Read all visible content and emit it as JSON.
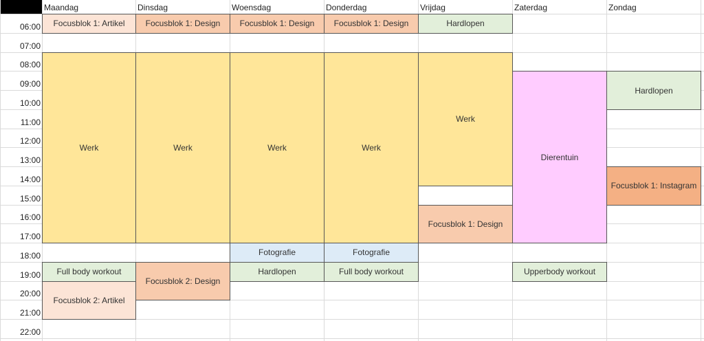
{
  "days": [
    "Maandag",
    "Dinsdag",
    "Woensdag",
    "Donderdag",
    "Vrijdag",
    "Zaterdag",
    "Zondag"
  ],
  "hours": [
    "06:00",
    "07:00",
    "08:00",
    "09:00",
    "10:00",
    "11:00",
    "12:00",
    "13:00",
    "14:00",
    "15:00",
    "16:00",
    "17:00",
    "18:00",
    "19:00",
    "20:00",
    "21:00",
    "22:00"
  ],
  "colors": {
    "focus_light": "#fce4d6",
    "focus": "#f8cbad",
    "focus_dark": "#f4b084",
    "work": "#ffe699",
    "sport": "#e2efda",
    "photo": "#ddebf7",
    "zoo": "#ffccff"
  },
  "events": [
    {
      "day": 0,
      "start": 6,
      "end": 7,
      "label": "Focusblok 1: Artikel",
      "color": "focus_light"
    },
    {
      "day": 0,
      "start": 8,
      "end": 18,
      "label": "Werk",
      "color": "work"
    },
    {
      "day": 0,
      "start": 19,
      "end": 20,
      "label": "Full body workout",
      "color": "sport"
    },
    {
      "day": 0,
      "start": 20,
      "end": 22,
      "label": "Focusblok 2: Artikel",
      "color": "focus_light"
    },
    {
      "day": 1,
      "start": 6,
      "end": 7,
      "label": "Focusblok 1: Design",
      "color": "focus"
    },
    {
      "day": 1,
      "start": 8,
      "end": 18,
      "label": "Werk",
      "color": "work"
    },
    {
      "day": 1,
      "start": 19,
      "end": 21,
      "label": "Focusblok 2: Design",
      "color": "focus"
    },
    {
      "day": 2,
      "start": 6,
      "end": 7,
      "label": "Focusblok 1: Design",
      "color": "focus"
    },
    {
      "day": 2,
      "start": 8,
      "end": 18,
      "label": "Werk",
      "color": "work"
    },
    {
      "day": 2,
      "start": 18,
      "end": 19,
      "label": "Fotografie",
      "color": "photo"
    },
    {
      "day": 2,
      "start": 19,
      "end": 20,
      "label": "Hardlopen",
      "color": "sport"
    },
    {
      "day": 3,
      "start": 6,
      "end": 7,
      "label": "Focusblok 1: Design",
      "color": "focus"
    },
    {
      "day": 3,
      "start": 8,
      "end": 18,
      "label": "Werk",
      "color": "work"
    },
    {
      "day": 3,
      "start": 18,
      "end": 19,
      "label": "Fotografie",
      "color": "photo"
    },
    {
      "day": 3,
      "start": 19,
      "end": 20,
      "label": "Full body workout",
      "color": "sport"
    },
    {
      "day": 4,
      "start": 6,
      "end": 7,
      "label": "Hardlopen",
      "color": "sport"
    },
    {
      "day": 4,
      "start": 8,
      "end": 15,
      "label": "Werk",
      "color": "work"
    },
    {
      "day": 4,
      "start": 16,
      "end": 18,
      "label": "Focusblok 1: Design",
      "color": "focus"
    },
    {
      "day": 5,
      "start": 9,
      "end": 18,
      "label": "Dierentuin",
      "color": "zoo"
    },
    {
      "day": 5,
      "start": 19,
      "end": 20,
      "label": "Upperbody workout",
      "color": "sport"
    },
    {
      "day": 6,
      "start": 9,
      "end": 11,
      "label": "Hardlopen",
      "color": "sport"
    },
    {
      "day": 6,
      "start": 14,
      "end": 16,
      "label": "Focusblok 1: Instagram",
      "color": "focus_dark"
    }
  ]
}
